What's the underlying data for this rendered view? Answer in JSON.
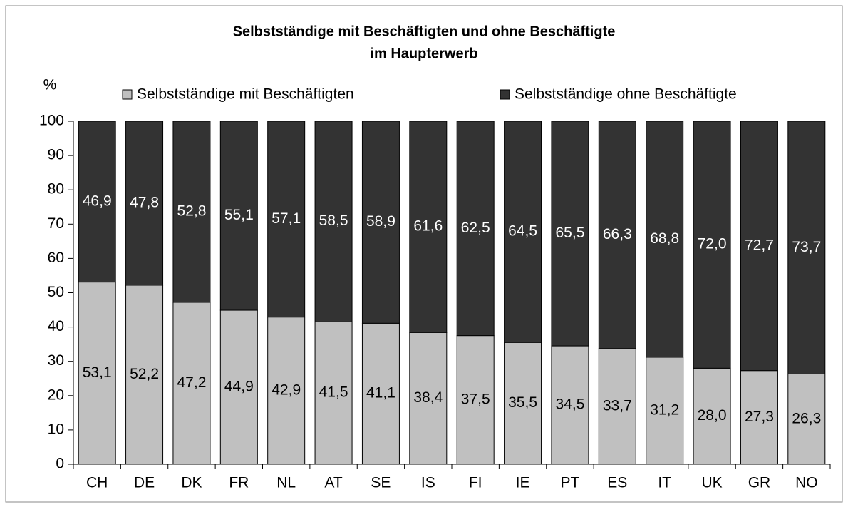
{
  "chart_data": {
    "type": "stacked_bar",
    "title": "Selbstständige mit Beschäftigten und ohne Beschäftigte",
    "subtitle": "im Haupterwerb",
    "y_label": "%",
    "categories": [
      "CH",
      "DE",
      "DK",
      "FR",
      "NL",
      "AT",
      "SE",
      "IS",
      "FI",
      "IE",
      "PT",
      "ES",
      "IT",
      "UK",
      "GR",
      "NO"
    ],
    "series": [
      {
        "name": "Selbstständige mit Beschäftigten",
        "color": "#c0c0c0",
        "values": [
          53.1,
          52.2,
          47.2,
          44.9,
          42.9,
          41.5,
          41.1,
          38.4,
          37.5,
          35.5,
          34.5,
          33.7,
          31.2,
          28.0,
          27.3,
          26.3
        ],
        "value_labels": [
          "53,1",
          "52,2",
          "47,2",
          "44,9",
          "42,9",
          "41,5",
          "41,1",
          "38,4",
          "37,5",
          "35,5",
          "34,5",
          "33,7",
          "31,2",
          "28,0",
          "27,3",
          "26,3"
        ]
      },
      {
        "name": "Selbstständige ohne Beschäftigte",
        "color": "#333333",
        "values": [
          46.9,
          47.8,
          52.8,
          55.1,
          57.1,
          58.5,
          58.9,
          61.6,
          62.5,
          64.5,
          65.5,
          66.3,
          68.8,
          72.0,
          72.7,
          73.7
        ],
        "value_labels": [
          "46,9",
          "47,8",
          "52,8",
          "55,1",
          "57,1",
          "58,5",
          "58,9",
          "61,6",
          "62,5",
          "64,5",
          "65,5",
          "66,3",
          "68,8",
          "72,0",
          "72,7",
          "73,7"
        ]
      }
    ],
    "ylim": [
      0,
      100
    ],
    "yticks": [
      0,
      10,
      20,
      30,
      40,
      50,
      60,
      70,
      80,
      90,
      100
    ],
    "grid": false
  }
}
